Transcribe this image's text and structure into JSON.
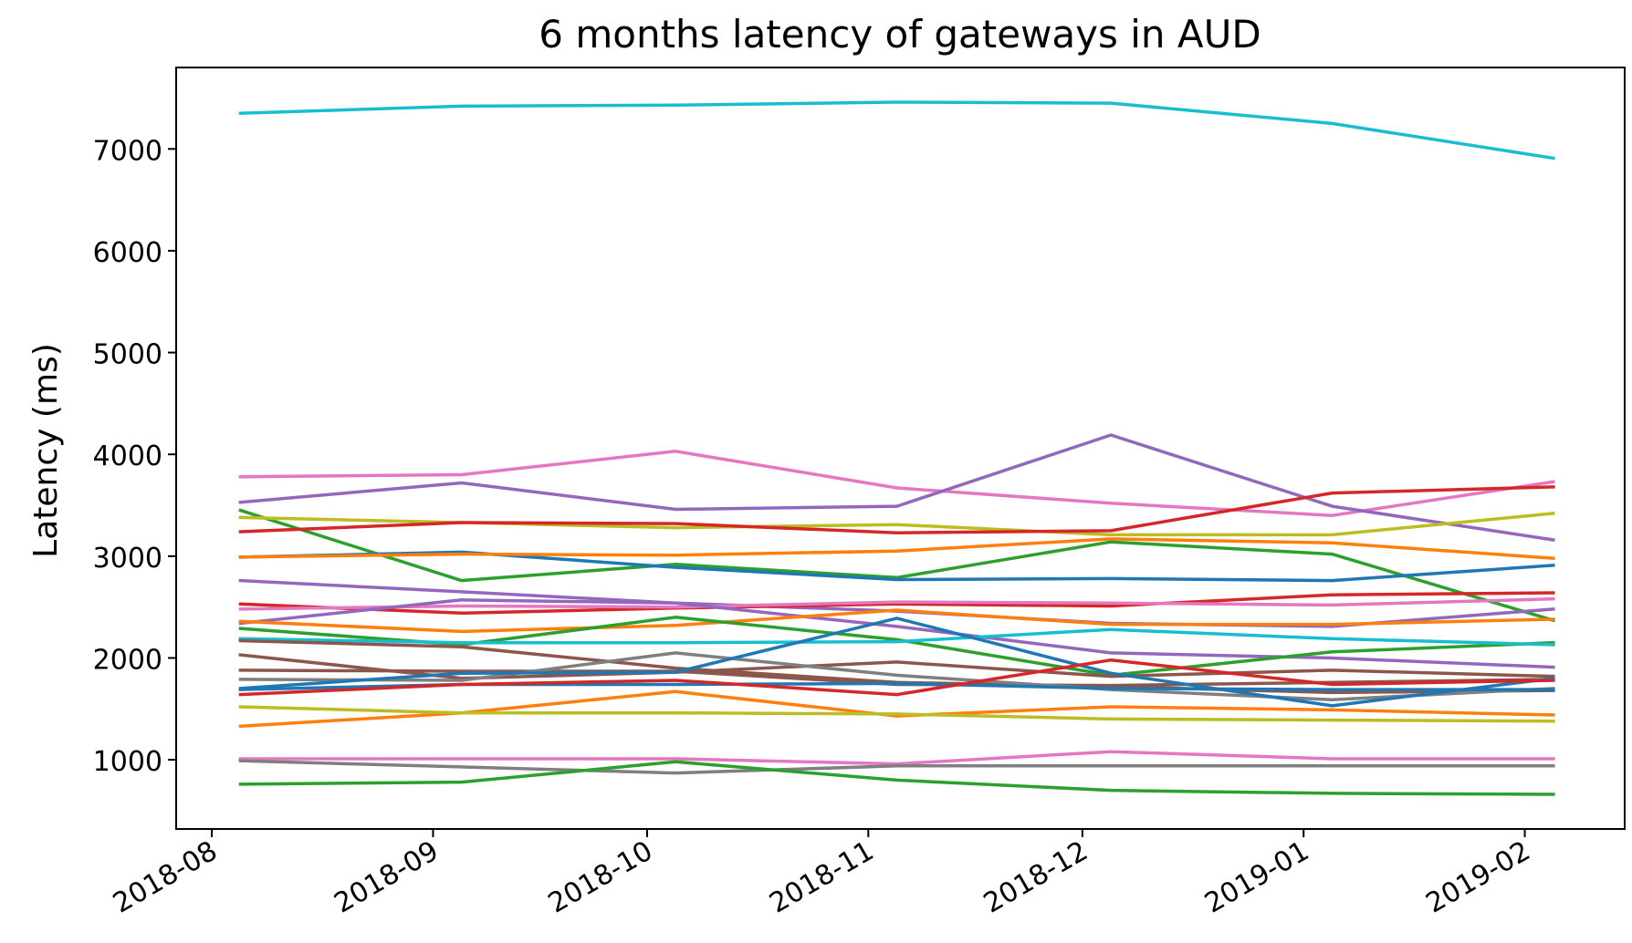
{
  "chart_data": {
    "type": "line",
    "title": "6 months latency of gateways in AUD",
    "xlabel": "",
    "ylabel": "Latency (ms)",
    "x": [
      "2018-08-05",
      "2018-09-05",
      "2018-10-05",
      "2018-11-05",
      "2018-12-05",
      "2019-01-05",
      "2019-02-05"
    ],
    "x_ticks": [
      "2018-08",
      "2018-09",
      "2018-10",
      "2018-11",
      "2018-12",
      "2019-01",
      "2019-02"
    ],
    "x_tick_dates": [
      "2018-08-01",
      "2018-09-01",
      "2018-10-01",
      "2018-11-01",
      "2018-12-01",
      "2019-01-01",
      "2019-02-01"
    ],
    "xlim": [
      "2018-07-27",
      "2019-02-15"
    ],
    "y_ticks": [
      1000,
      2000,
      3000,
      4000,
      5000,
      6000,
      7000
    ],
    "ylim": [
      320,
      7800
    ],
    "grid": false,
    "series": [
      {
        "color": "#17becf",
        "values": [
          7350,
          7420,
          7430,
          7460,
          7450,
          7250,
          6910
        ]
      },
      {
        "color": "#e377c2",
        "values": [
          3780,
          3800,
          4030,
          3670,
          3520,
          3400,
          3730
        ]
      },
      {
        "color": "#9467bd",
        "values": [
          3530,
          3720,
          3460,
          3490,
          4190,
          3490,
          3160
        ]
      },
      {
        "color": "#2ca02c",
        "values": [
          3450,
          2760,
          2920,
          2790,
          3140,
          3020,
          2370
        ]
      },
      {
        "color": "#bcbd22",
        "values": [
          3380,
          3330,
          3280,
          3310,
          3210,
          3210,
          3420
        ]
      },
      {
        "color": "#d62728",
        "values": [
          3240,
          3330,
          3320,
          3230,
          3250,
          3620,
          3680
        ]
      },
      {
        "color": "#1f77b4",
        "values": [
          2990,
          3040,
          2890,
          2770,
          2780,
          2760,
          2910
        ]
      },
      {
        "color": "#ff7f0e",
        "values": [
          2990,
          3020,
          3010,
          3050,
          3170,
          3130,
          2980
        ]
      },
      {
        "color": "#9467bd",
        "values": [
          2760,
          2650,
          2540,
          2460,
          2340,
          2310,
          2480
        ]
      },
      {
        "color": "#d62728",
        "values": [
          2530,
          2440,
          2490,
          2530,
          2510,
          2620,
          2640
        ]
      },
      {
        "color": "#e377c2",
        "values": [
          2480,
          2510,
          2500,
          2550,
          2540,
          2520,
          2580
        ]
      },
      {
        "color": "#9467bd",
        "values": [
          2340,
          2570,
          2540,
          2310,
          2050,
          2000,
          1910
        ]
      },
      {
        "color": "#ff7f0e",
        "values": [
          2360,
          2260,
          2320,
          2470,
          2330,
          2330,
          2380
        ]
      },
      {
        "color": "#2ca02c",
        "values": [
          2290,
          2130,
          2400,
          2180,
          1830,
          2060,
          2150
        ]
      },
      {
        "color": "#17becf",
        "values": [
          2190,
          2150,
          2150,
          2160,
          2280,
          2190,
          2130
        ]
      },
      {
        "color": "#8c564b",
        "values": [
          2170,
          2110,
          1900,
          1760,
          1720,
          1660,
          1680
        ]
      },
      {
        "color": "#8c564b",
        "values": [
          2030,
          1800,
          1860,
          1960,
          1820,
          1880,
          1820
        ]
      },
      {
        "color": "#8c564b",
        "values": [
          1880,
          1870,
          1870,
          1740,
          1730,
          1760,
          1790
        ]
      },
      {
        "color": "#7f7f7f",
        "values": [
          1790,
          1780,
          2050,
          1830,
          1690,
          1590,
          1700
        ]
      },
      {
        "color": "#1f77b4",
        "values": [
          1700,
          1850,
          1860,
          2390,
          1850,
          1530,
          1800
        ]
      },
      {
        "color": "#1f77b4",
        "values": [
          1690,
          1740,
          1740,
          1750,
          1700,
          1690,
          1690
        ]
      },
      {
        "color": "#d62728",
        "values": [
          1640,
          1740,
          1780,
          1640,
          1980,
          1740,
          1780
        ]
      },
      {
        "color": "#ff7f0e",
        "values": [
          1330,
          1460,
          1670,
          1430,
          1520,
          1490,
          1440
        ]
      },
      {
        "color": "#bcbd22",
        "values": [
          1520,
          1460,
          1460,
          1450,
          1400,
          1390,
          1380
        ]
      },
      {
        "color": "#e377c2",
        "values": [
          1010,
          1010,
          1010,
          960,
          1080,
          1010,
          1010
        ]
      },
      {
        "color": "#7f7f7f",
        "values": [
          990,
          930,
          870,
          940,
          940,
          940,
          940
        ]
      },
      {
        "color": "#2ca02c",
        "values": [
          760,
          780,
          980,
          800,
          700,
          670,
          660
        ]
      }
    ]
  }
}
